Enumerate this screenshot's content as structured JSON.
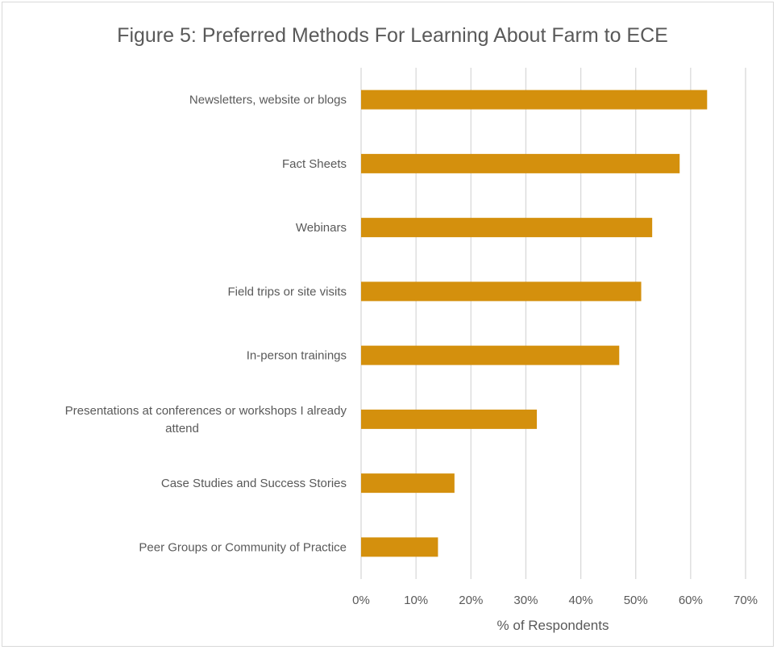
{
  "chart_data": {
    "type": "bar",
    "orientation": "horizontal",
    "title": "Figure 5: Preferred Methods For Learning About Farm to ECE",
    "xlabel": "% of Respondents",
    "ylabel": "",
    "categories": [
      "Newsletters, website or blogs",
      "Fact Sheets",
      "Webinars",
      "Field trips or site visits",
      "In-person trainings",
      "Presentations at conferences or workshops I already attend",
      "Case Studies and Success Stories",
      "Peer Groups or Community of Practice"
    ],
    "category_label_lines": [
      [
        "Newsletters, website or blogs"
      ],
      [
        "Fact Sheets"
      ],
      [
        "Webinars"
      ],
      [
        "Field trips or site visits"
      ],
      [
        "In-person trainings"
      ],
      [
        "Presentations at conferences or workshops I already",
        "attend"
      ],
      [
        "Case Studies and Success Stories"
      ],
      [
        "Peer Groups or Community of Practice"
      ]
    ],
    "values": [
      63,
      58,
      53,
      51,
      47,
      32,
      17,
      14
    ],
    "value_unit": "%",
    "xlim": [
      0,
      70
    ],
    "xticks": [
      0,
      10,
      20,
      30,
      40,
      50,
      60,
      70
    ],
    "xtick_labels": [
      "0%",
      "10%",
      "20%",
      "30%",
      "40%",
      "50%",
      "60%",
      "70%"
    ],
    "grid": "vertical",
    "legend": "none",
    "bar_color": "#D4900D",
    "grid_color": "#D9D9D9",
    "text_color": "#595959"
  }
}
